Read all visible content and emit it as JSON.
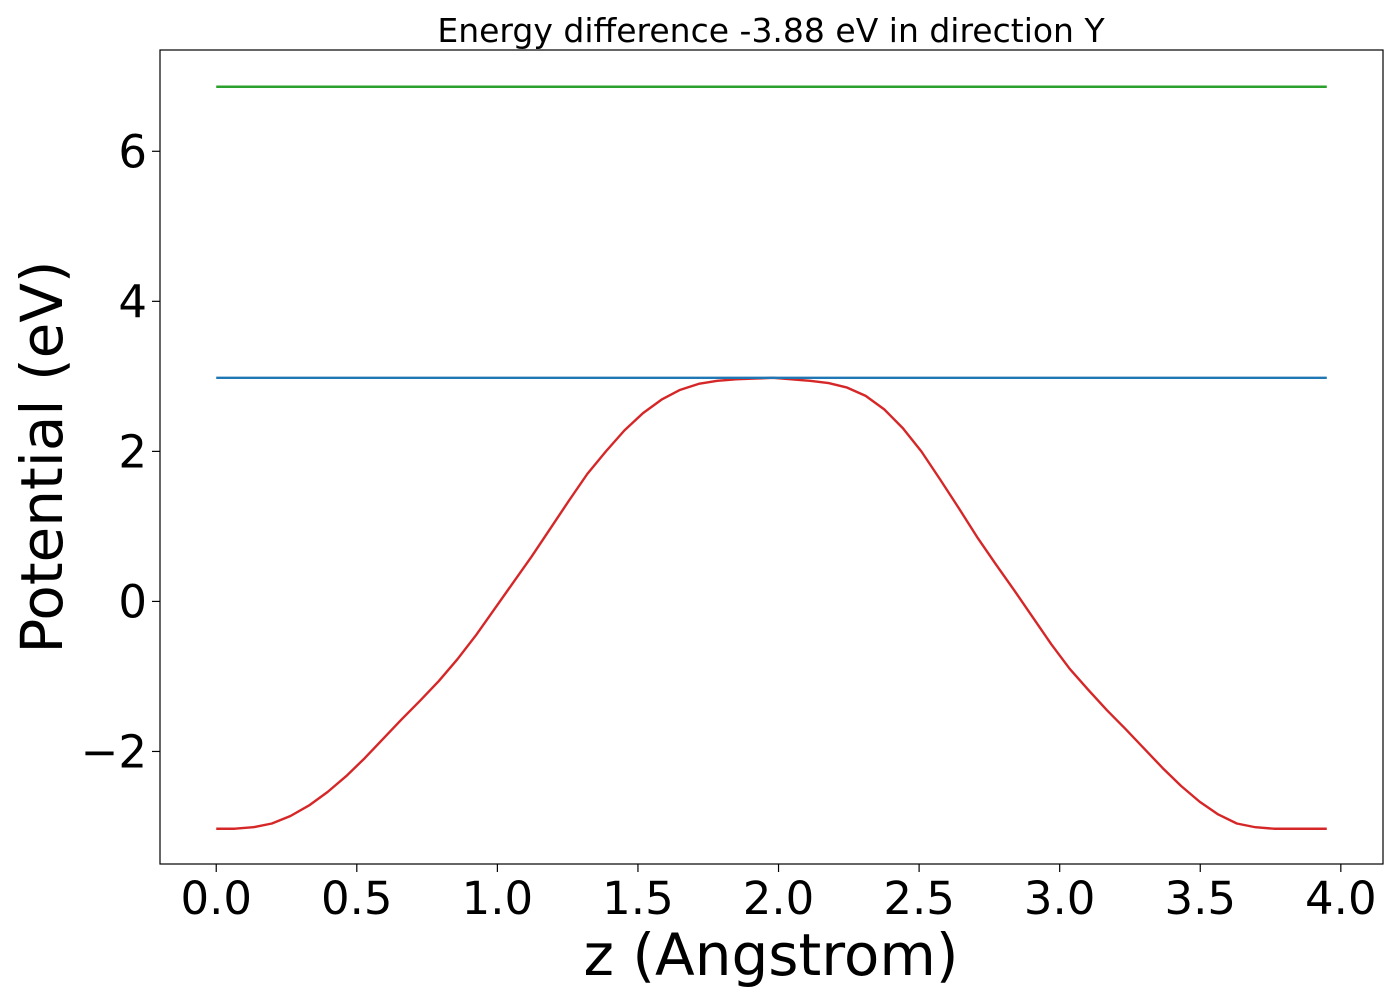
{
  "chart_data": {
    "type": "line",
    "title": "Energy difference -3.88 eV in direction Y",
    "xlabel": "z (Angstrom)",
    "ylabel": "Potential (eV)",
    "xlim": [
      -0.2,
      4.15
    ],
    "ylim": [
      -3.5,
      7.35
    ],
    "xticks": [
      0.0,
      0.5,
      1.0,
      1.5,
      2.0,
      2.5,
      3.0,
      3.5,
      4.0
    ],
    "xtick_labels": [
      "0.0",
      "0.5",
      "1.0",
      "1.5",
      "2.0",
      "2.5",
      "3.0",
      "3.5",
      "4.0"
    ],
    "yticks": [
      -2,
      0,
      2,
      4,
      6
    ],
    "ytick_labels": [
      "−2",
      "0",
      "2",
      "4",
      "6"
    ],
    "grid": false,
    "series": [
      {
        "color": "#d62728",
        "x": [
          0.0,
          0.066,
          0.132,
          0.198,
          0.264,
          0.33,
          0.396,
          0.462,
          0.528,
          0.594,
          0.66,
          0.726,
          0.792,
          0.858,
          0.924,
          0.99,
          1.056,
          1.122,
          1.188,
          1.254,
          1.32,
          1.386,
          1.452,
          1.518,
          1.584,
          1.65,
          1.716,
          1.782,
          1.848,
          1.914,
          1.98,
          2.046,
          2.112,
          2.178,
          2.244,
          2.31,
          2.376,
          2.442,
          2.508,
          2.574,
          2.64,
          2.706,
          2.772,
          2.838,
          2.904,
          2.97,
          3.036,
          3.102,
          3.168,
          3.234,
          3.3,
          3.366,
          3.432,
          3.498,
          3.564,
          3.63,
          3.696,
          3.762,
          3.828,
          3.894,
          3.95
        ],
        "y": [
          -3.03,
          -3.03,
          -3.01,
          -2.96,
          -2.86,
          -2.72,
          -2.54,
          -2.33,
          -2.09,
          -1.83,
          -1.57,
          -1.32,
          -1.06,
          -0.77,
          -0.45,
          -0.1,
          0.25,
          0.6,
          0.97,
          1.34,
          1.7,
          2.0,
          2.28,
          2.51,
          2.69,
          2.82,
          2.9,
          2.94,
          2.96,
          2.97,
          2.98,
          2.96,
          2.94,
          2.91,
          2.85,
          2.74,
          2.56,
          2.31,
          2.0,
          1.63,
          1.25,
          0.86,
          0.5,
          0.15,
          -0.21,
          -0.57,
          -0.9,
          -1.18,
          -1.45,
          -1.7,
          -1.96,
          -2.22,
          -2.46,
          -2.67,
          -2.84,
          -2.96,
          -3.01,
          -3.03,
          -3.03,
          -3.03,
          -3.03
        ]
      },
      {
        "color": "#1f77b4",
        "x": [
          0.0,
          3.95
        ],
        "y": [
          2.98,
          2.98
        ]
      },
      {
        "color": "#2ca02c",
        "x": [
          0.0,
          3.95
        ],
        "y": [
          6.86,
          6.86
        ]
      }
    ]
  }
}
